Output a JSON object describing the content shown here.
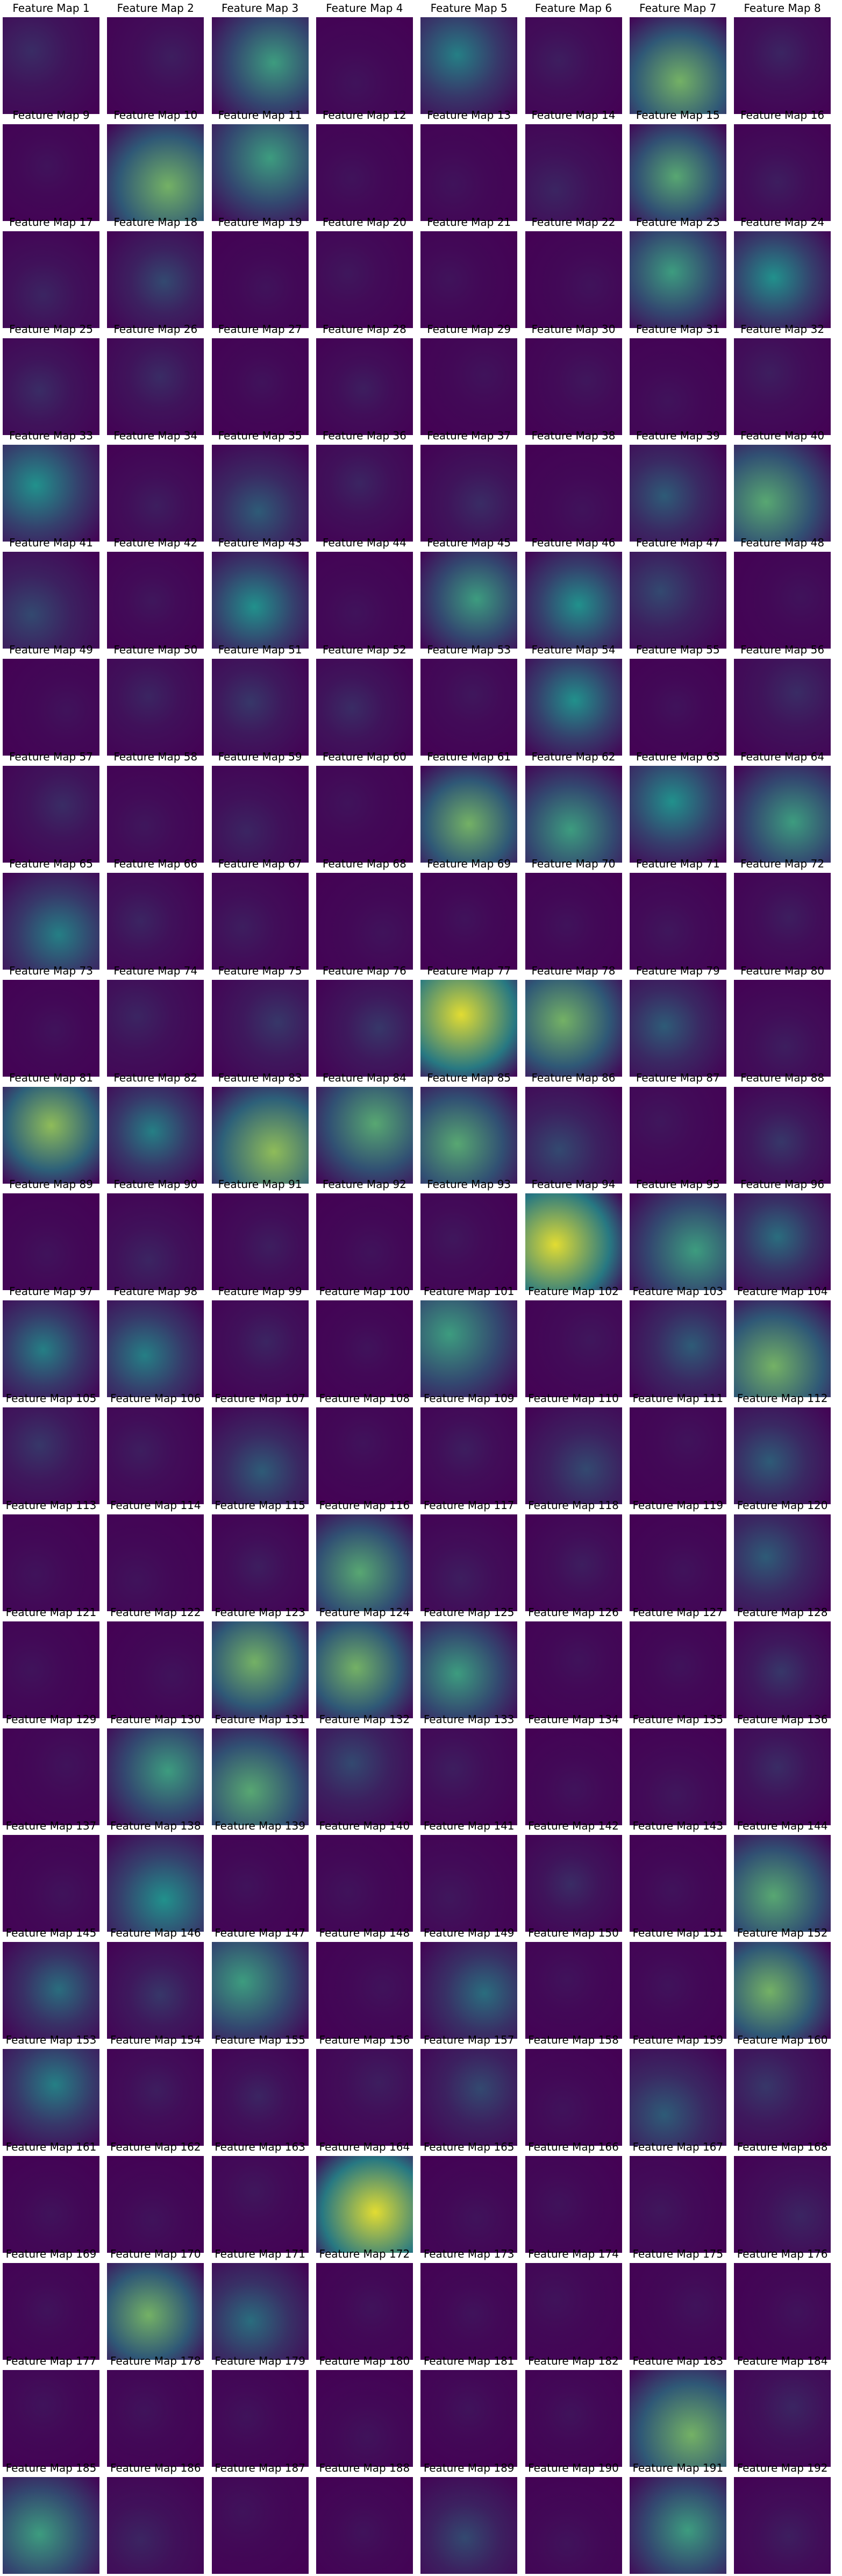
{
  "figure": {
    "colormap": "viridis",
    "colors": {
      "background": "#ffffff",
      "low": "#440154",
      "mid": "#21918c",
      "high": "#fde725"
    },
    "columns": 8,
    "rows": 24,
    "title_prefix": "Feature Map"
  },
  "maps": [
    {
      "title": "Feature Map 1",
      "intensity": 0.12
    },
    {
      "title": "Feature Map 2",
      "intensity": 0.08
    },
    {
      "title": "Feature Map 3",
      "intensity": 0.45
    },
    {
      "title": "Feature Map 4",
      "intensity": 0.05
    },
    {
      "title": "Feature Map 5",
      "intensity": 0.35
    },
    {
      "title": "Feature Map 6",
      "intensity": 0.08
    },
    {
      "title": "Feature Map 7",
      "intensity": 0.55
    },
    {
      "title": "Feature Map 8",
      "intensity": 0.1
    },
    {
      "title": "Feature Map 9",
      "intensity": 0.05
    },
    {
      "title": "Feature Map 10",
      "intensity": 0.55
    },
    {
      "title": "Feature Map 11",
      "intensity": 0.45
    },
    {
      "title": "Feature Map 12",
      "intensity": 0.05
    },
    {
      "title": "Feature Map 13",
      "intensity": 0.05
    },
    {
      "title": "Feature Map 14",
      "intensity": 0.1
    },
    {
      "title": "Feature Map 15",
      "intensity": 0.5
    },
    {
      "title": "Feature Map 16",
      "intensity": 0.08
    },
    {
      "title": "Feature Map 17",
      "intensity": 0.1
    },
    {
      "title": "Feature Map 18",
      "intensity": 0.2
    },
    {
      "title": "Feature Map 19",
      "intensity": 0.05
    },
    {
      "title": "Feature Map 20",
      "intensity": 0.06
    },
    {
      "title": "Feature Map 21",
      "intensity": 0.05
    },
    {
      "title": "Feature Map 22",
      "intensity": 0.05
    },
    {
      "title": "Feature Map 23",
      "intensity": 0.45
    },
    {
      "title": "Feature Map 24",
      "intensity": 0.4
    },
    {
      "title": "Feature Map 25",
      "intensity": 0.12
    },
    {
      "title": "Feature Map 26",
      "intensity": 0.12
    },
    {
      "title": "Feature Map 27",
      "intensity": 0.05
    },
    {
      "title": "Feature Map 28",
      "intensity": 0.08
    },
    {
      "title": "Feature Map 29",
      "intensity": 0.05
    },
    {
      "title": "Feature Map 30",
      "intensity": 0.06
    },
    {
      "title": "Feature Map 31",
      "intensity": 0.05
    },
    {
      "title": "Feature Map 32",
      "intensity": 0.08
    },
    {
      "title": "Feature Map 33",
      "intensity": 0.4
    },
    {
      "title": "Feature Map 34",
      "intensity": 0.08
    },
    {
      "title": "Feature Map 35",
      "intensity": 0.25
    },
    {
      "title": "Feature Map 36",
      "intensity": 0.1
    },
    {
      "title": "Feature Map 37",
      "intensity": 0.12
    },
    {
      "title": "Feature Map 38",
      "intensity": 0.05
    },
    {
      "title": "Feature Map 39",
      "intensity": 0.25
    },
    {
      "title": "Feature Map 40",
      "intensity": 0.5
    },
    {
      "title": "Feature Map 41",
      "intensity": 0.2
    },
    {
      "title": "Feature Map 42",
      "intensity": 0.06
    },
    {
      "title": "Feature Map 43",
      "intensity": 0.4
    },
    {
      "title": "Feature Map 44",
      "intensity": 0.05
    },
    {
      "title": "Feature Map 45",
      "intensity": 0.45
    },
    {
      "title": "Feature Map 46",
      "intensity": 0.4
    },
    {
      "title": "Feature Map 47",
      "intensity": 0.2
    },
    {
      "title": "Feature Map 48",
      "intensity": 0.05
    },
    {
      "title": "Feature Map 49",
      "intensity": 0.05
    },
    {
      "title": "Feature Map 50",
      "intensity": 0.1
    },
    {
      "title": "Feature Map 51",
      "intensity": 0.15
    },
    {
      "title": "Feature Map 52",
      "intensity": 0.12
    },
    {
      "title": "Feature Map 53",
      "intensity": 0.06
    },
    {
      "title": "Feature Map 54",
      "intensity": 0.4
    },
    {
      "title": "Feature Map 55",
      "intensity": 0.05
    },
    {
      "title": "Feature Map 56",
      "intensity": 0.12
    },
    {
      "title": "Feature Map 57",
      "intensity": 0.12
    },
    {
      "title": "Feature Map 58",
      "intensity": 0.06
    },
    {
      "title": "Feature Map 59",
      "intensity": 0.1
    },
    {
      "title": "Feature Map 60",
      "intensity": 0.05
    },
    {
      "title": "Feature Map 61",
      "intensity": 0.55
    },
    {
      "title": "Feature Map 62",
      "intensity": 0.45
    },
    {
      "title": "Feature Map 63",
      "intensity": 0.4
    },
    {
      "title": "Feature Map 64",
      "intensity": 0.45
    },
    {
      "title": "Feature Map 65",
      "intensity": 0.35
    },
    {
      "title": "Feature Map 66",
      "intensity": 0.1
    },
    {
      "title": "Feature Map 67",
      "intensity": 0.08
    },
    {
      "title": "Feature Map 68",
      "intensity": 0.05
    },
    {
      "title": "Feature Map 69",
      "intensity": 0.05
    },
    {
      "title": "Feature Map 70",
      "intensity": 0.05
    },
    {
      "title": "Feature Map 71",
      "intensity": 0.06
    },
    {
      "title": "Feature Map 72",
      "intensity": 0.08
    },
    {
      "title": "Feature Map 73",
      "intensity": 0.05
    },
    {
      "title": "Feature Map 74",
      "intensity": 0.1
    },
    {
      "title": "Feature Map 75",
      "intensity": 0.15
    },
    {
      "title": "Feature Map 76",
      "intensity": 0.15
    },
    {
      "title": "Feature Map 77",
      "intensity": 0.75
    },
    {
      "title": "Feature Map 78",
      "intensity": 0.55
    },
    {
      "title": "Feature Map 79",
      "intensity": 0.25
    },
    {
      "title": "Feature Map 80",
      "intensity": 0.08
    },
    {
      "title": "Feature Map 81",
      "intensity": 0.6
    },
    {
      "title": "Feature Map 82",
      "intensity": 0.35
    },
    {
      "title": "Feature Map 83",
      "intensity": 0.6
    },
    {
      "title": "Feature Map 84",
      "intensity": 0.5
    },
    {
      "title": "Feature Map 85",
      "intensity": 0.5
    },
    {
      "title": "Feature Map 86",
      "intensity": 0.2
    },
    {
      "title": "Feature Map 87",
      "intensity": 0.06
    },
    {
      "title": "Feature Map 88",
      "intensity": 0.15
    },
    {
      "title": "Feature Map 89",
      "intensity": 0.05
    },
    {
      "title": "Feature Map 90",
      "intensity": 0.1
    },
    {
      "title": "Feature Map 91",
      "intensity": 0.08
    },
    {
      "title": "Feature Map 92",
      "intensity": 0.05
    },
    {
      "title": "Feature Map 93",
      "intensity": 0.06
    },
    {
      "title": "Feature Map 94",
      "intensity": 0.75
    },
    {
      "title": "Feature Map 95",
      "intensity": 0.45
    },
    {
      "title": "Feature Map 96",
      "intensity": 0.3
    },
    {
      "title": "Feature Map 97",
      "intensity": 0.35
    },
    {
      "title": "Feature Map 98",
      "intensity": 0.35
    },
    {
      "title": "Feature Map 99",
      "intensity": 0.1
    },
    {
      "title": "Feature Map 100",
      "intensity": 0.05
    },
    {
      "title": "Feature Map 101",
      "intensity": 0.45
    },
    {
      "title": "Feature Map 102",
      "intensity": 0.06
    },
    {
      "title": "Feature Map 103",
      "intensity": 0.25
    },
    {
      "title": "Feature Map 104",
      "intensity": 0.55
    },
    {
      "title": "Feature Map 105",
      "intensity": 0.15
    },
    {
      "title": "Feature Map 106",
      "intensity": 0.08
    },
    {
      "title": "Feature Map 107",
      "intensity": 0.25
    },
    {
      "title": "Feature Map 108",
      "intensity": 0.05
    },
    {
      "title": "Feature Map 109",
      "intensity": 0.08
    },
    {
      "title": "Feature Map 110",
      "intensity": 0.2
    },
    {
      "title": "Feature Map 111",
      "intensity": 0.05
    },
    {
      "title": "Feature Map 112",
      "intensity": 0.25
    },
    {
      "title": "Feature Map 113",
      "intensity": 0.05
    },
    {
      "title": "Feature Map 114",
      "intensity": 0.05
    },
    {
      "title": "Feature Map 115",
      "intensity": 0.08
    },
    {
      "title": "Feature Map 116",
      "intensity": 0.5
    },
    {
      "title": "Feature Map 117",
      "intensity": 0.08
    },
    {
      "title": "Feature Map 118",
      "intensity": 0.08
    },
    {
      "title": "Feature Map 119",
      "intensity": 0.05
    },
    {
      "title": "Feature Map 120",
      "intensity": 0.25
    },
    {
      "title": "Feature Map 121",
      "intensity": 0.05
    },
    {
      "title": "Feature Map 122",
      "intensity": 0.05
    },
    {
      "title": "Feature Map 123",
      "intensity": 0.55
    },
    {
      "title": "Feature Map 124",
      "intensity": 0.55
    },
    {
      "title": "Feature Map 125",
      "intensity": 0.45
    },
    {
      "title": "Feature Map 126",
      "intensity": 0.05
    },
    {
      "title": "Feature Map 127",
      "intensity": 0.05
    },
    {
      "title": "Feature Map 128",
      "intensity": 0.15
    },
    {
      "title": "Feature Map 129",
      "intensity": 0.05
    },
    {
      "title": "Feature Map 130",
      "intensity": 0.45
    },
    {
      "title": "Feature Map 131",
      "intensity": 0.5
    },
    {
      "title": "Feature Map 132",
      "intensity": 0.2
    },
    {
      "title": "Feature Map 133",
      "intensity": 0.08
    },
    {
      "title": "Feature Map 134",
      "intensity": 0.05
    },
    {
      "title": "Feature Map 135",
      "intensity": 0.06
    },
    {
      "title": "Feature Map 136",
      "intensity": 0.12
    },
    {
      "title": "Feature Map 137",
      "intensity": 0.05
    },
    {
      "title": "Feature Map 138",
      "intensity": 0.4
    },
    {
      "title": "Feature Map 139",
      "intensity": 0.05
    },
    {
      "title": "Feature Map 140",
      "intensity": 0.05
    },
    {
      "title": "Feature Map 141",
      "intensity": 0.06
    },
    {
      "title": "Feature Map 142",
      "intensity": 0.12
    },
    {
      "title": "Feature Map 143",
      "intensity": 0.05
    },
    {
      "title": "Feature Map 144",
      "intensity": 0.5
    },
    {
      "title": "Feature Map 145",
      "intensity": 0.3
    },
    {
      "title": "Feature Map 146",
      "intensity": 0.15
    },
    {
      "title": "Feature Map 147",
      "intensity": 0.45
    },
    {
      "title": "Feature Map 148",
      "intensity": 0.05
    },
    {
      "title": "Feature Map 149",
      "intensity": 0.3
    },
    {
      "title": "Feature Map 150",
      "intensity": 0.05
    },
    {
      "title": "Feature Map 151",
      "intensity": 0.05
    },
    {
      "title": "Feature Map 152",
      "intensity": 0.55
    },
    {
      "title": "Feature Map 153",
      "intensity": 0.35
    },
    {
      "title": "Feature Map 154",
      "intensity": 0.08
    },
    {
      "title": "Feature Map 155",
      "intensity": 0.1
    },
    {
      "title": "Feature Map 156",
      "intensity": 0.08
    },
    {
      "title": "Feature Map 157",
      "intensity": 0.2
    },
    {
      "title": "Feature Map 158",
      "intensity": 0.05
    },
    {
      "title": "Feature Map 159",
      "intensity": 0.25
    },
    {
      "title": "Feature Map 160",
      "intensity": 0.15
    },
    {
      "title": "Feature Map 161",
      "intensity": 0.05
    },
    {
      "title": "Feature Map 162",
      "intensity": 0.05
    },
    {
      "title": "Feature Map 163",
      "intensity": 0.06
    },
    {
      "title": "Feature Map 164",
      "intensity": 0.75
    },
    {
      "title": "Feature Map 165",
      "intensity": 0.05
    },
    {
      "title": "Feature Map 166",
      "intensity": 0.05
    },
    {
      "title": "Feature Map 167",
      "intensity": 0.06
    },
    {
      "title": "Feature Map 168",
      "intensity": 0.1
    },
    {
      "title": "Feature Map 169",
      "intensity": 0.05
    },
    {
      "title": "Feature Map 170",
      "intensity": 0.55
    },
    {
      "title": "Feature Map 171",
      "intensity": 0.3
    },
    {
      "title": "Feature Map 172",
      "intensity": 0.05
    },
    {
      "title": "Feature Map 173",
      "intensity": 0.05
    },
    {
      "title": "Feature Map 174",
      "intensity": 0.05
    },
    {
      "title": "Feature Map 175",
      "intensity": 0.05
    },
    {
      "title": "Feature Map 176",
      "intensity": 0.05
    },
    {
      "title": "Feature Map 177",
      "intensity": 0.05
    },
    {
      "title": "Feature Map 178",
      "intensity": 0.05
    },
    {
      "title": "Feature Map 179",
      "intensity": 0.05
    },
    {
      "title": "Feature Map 180",
      "intensity": 0.05
    },
    {
      "title": "Feature Map 181",
      "intensity": 0.05
    },
    {
      "title": "Feature Map 182",
      "intensity": 0.05
    },
    {
      "title": "Feature Map 183",
      "intensity": 0.55
    },
    {
      "title": "Feature Map 184",
      "intensity": 0.1
    },
    {
      "title": "Feature Map 185",
      "intensity": 0.45
    },
    {
      "title": "Feature Map 186",
      "intensity": 0.1
    },
    {
      "title": "Feature Map 187",
      "intensity": 0.05
    },
    {
      "title": "Feature Map 188",
      "intensity": 0.05
    },
    {
      "title": "Feature Map 189",
      "intensity": 0.2
    },
    {
      "title": "Feature Map 190",
      "intensity": 0.05
    },
    {
      "title": "Feature Map 191",
      "intensity": 0.45
    },
    {
      "title": "Feature Map 192",
      "intensity": 0.08
    }
  ]
}
